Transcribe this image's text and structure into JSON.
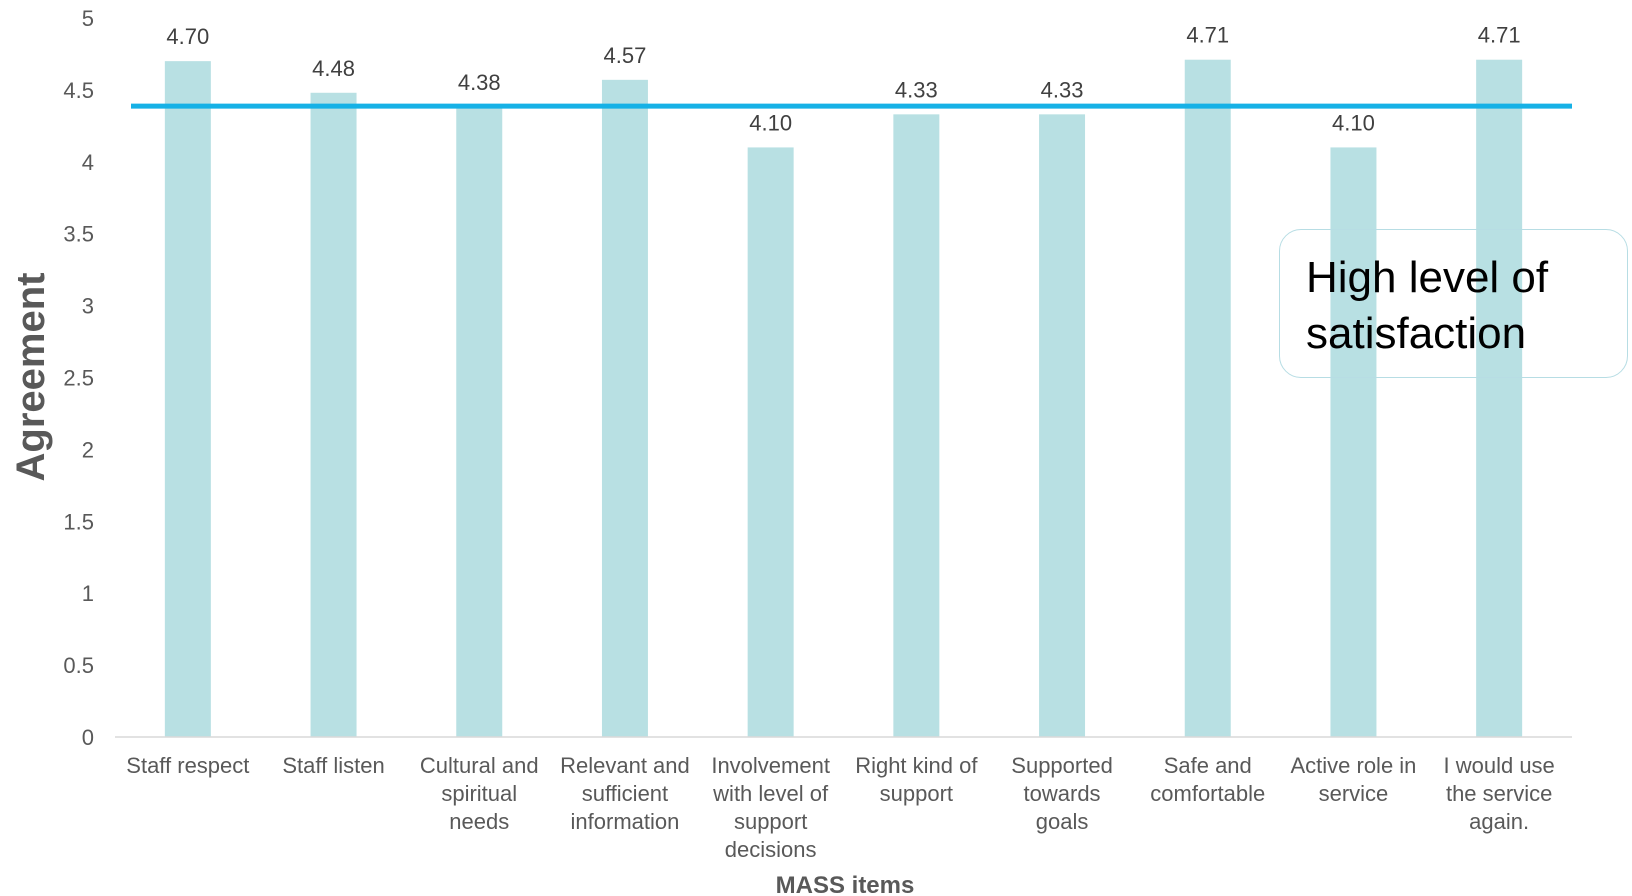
{
  "chart_data": {
    "type": "bar",
    "title": "",
    "xlabel": "MASS items",
    "ylabel": "Agreement",
    "ylim": [
      0,
      5
    ],
    "yticks": [
      "0",
      "0.5",
      "1",
      "1.5",
      "2",
      "2.5",
      "3",
      "3.5",
      "4",
      "4.5",
      "5"
    ],
    "categories": [
      [
        "Staff respect"
      ],
      [
        "Staff listen"
      ],
      [
        "Cultural and",
        "spiritual",
        "needs"
      ],
      [
        "Relevant and",
        "sufficient",
        "information"
      ],
      [
        "Involvement",
        "with level of",
        "support",
        "decisions"
      ],
      [
        "Right kind of",
        "support"
      ],
      [
        "Supported",
        "towards",
        "goals"
      ],
      [
        "Safe and",
        "comfortable"
      ],
      [
        "Active role in",
        "service"
      ],
      [
        "I would use",
        "the service",
        "again."
      ]
    ],
    "values": [
      4.7,
      4.48,
      4.38,
      4.57,
      4.1,
      4.33,
      4.33,
      4.71,
      4.1,
      4.71
    ],
    "data_labels": [
      "4.70",
      "4.48",
      "4.38",
      "4.57",
      "4.10",
      "4.33",
      "4.33",
      "4.71",
      "4.10",
      "4.71"
    ],
    "reference_line": 4.38,
    "grid": false,
    "legend": "none",
    "colors": {
      "bar": "#b8e0e3",
      "reference_line": "#16b1e6",
      "axis": "#d9d9d9",
      "text": "#595959"
    }
  },
  "annotation": {
    "text": "High level of satisfaction"
  }
}
